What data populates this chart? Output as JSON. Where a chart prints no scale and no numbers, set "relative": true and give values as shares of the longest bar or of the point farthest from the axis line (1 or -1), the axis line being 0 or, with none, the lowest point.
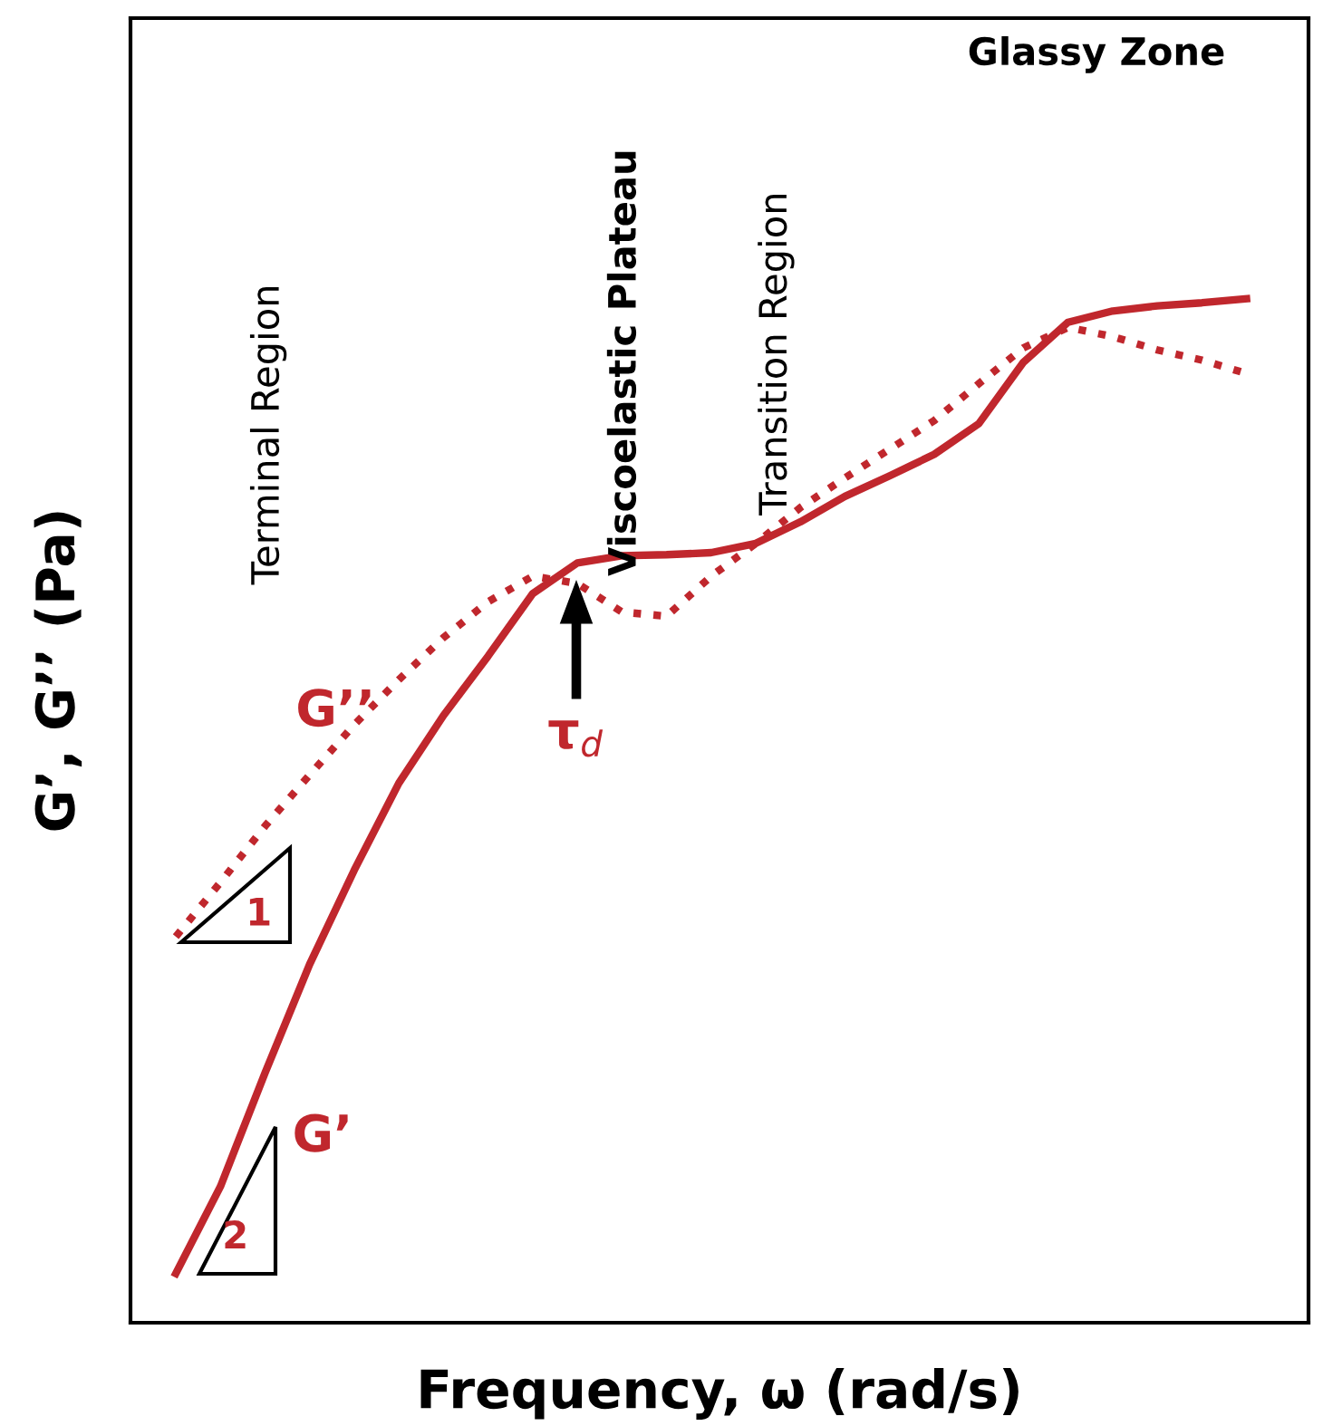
{
  "chart_data": {
    "type": "line",
    "relative": true,
    "xlabel": "Frequency, ω (rad/s)",
    "ylabel": "G’, G’’ (Pa)",
    "categories": [
      null,
      null,
      null,
      null,
      null,
      null,
      null,
      null,
      null,
      null,
      null,
      null,
      null,
      null,
      null,
      null,
      null,
      null,
      null,
      null,
      null,
      null,
      null,
      null,
      null
    ],
    "series": [
      {
        "color": "#c0272d",
        "line_style": "solid",
        "values": [
          0.048,
          0.133,
          0.244,
          0.35,
          0.442,
          0.527,
          0.593,
          0.651,
          0.712,
          0.742,
          0.749,
          0.75,
          0.752,
          0.761,
          0.782,
          0.807,
          0.827,
          0.848,
          0.878,
          0.938,
          0.977,
          0.988,
          0.993,
          0.996,
          1.0
        ]
      },
      {
        "color": "#c0272d",
        "line_style": "dotted",
        "values": [
          0.377,
          0.43,
          0.485,
          0.535,
          0.584,
          0.628,
          0.669,
          0.704,
          0.729,
          0.722,
          0.694,
          0.69,
          0.729,
          0.761,
          0.796,
          0.825,
          0.853,
          0.881,
          0.917,
          0.952,
          0.972,
          0.963,
          0.95,
          0.94,
          0.927
        ]
      }
    ],
    "annotations": [
      "Terminal Region",
      "Viscoelastic Plateau",
      "Transition Region",
      "Glassy Zone",
      "G’’",
      "τ$_{d}$",
      "G’",
      "1",
      "2"
    ],
    "legend": false,
    "marker": "none",
    "tick_labels": false
  }
}
